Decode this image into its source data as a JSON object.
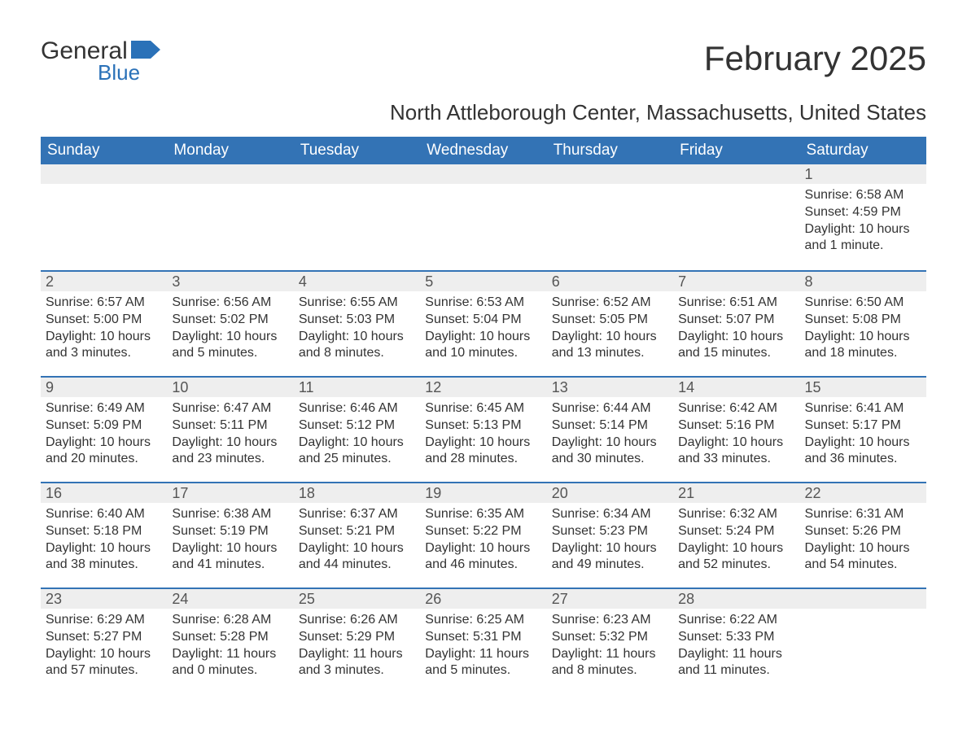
{
  "logo": {
    "word1": "General",
    "word2": "Blue"
  },
  "title": "February 2025",
  "subtitle": "North Attleborough Center, Massachusetts, United States",
  "colors": {
    "brand_blue": "#3373b5",
    "logo_blue": "#2a71b8",
    "text_dark": "#333333",
    "day_bar_bg": "#eeeeee",
    "white": "#ffffff"
  },
  "typography": {
    "title_fontsize": 42,
    "subtitle_fontsize": 26,
    "dow_fontsize": 19,
    "daynum_fontsize": 18,
    "body_fontsize": 16
  },
  "days_of_week": [
    "Sunday",
    "Monday",
    "Tuesday",
    "Wednesday",
    "Thursday",
    "Friday",
    "Saturday"
  ],
  "labels": {
    "sunrise": "Sunrise:",
    "sunset": "Sunset:",
    "daylight": "Daylight:"
  },
  "weeks": [
    [
      {
        "num": "",
        "sunrise": "",
        "sunset": "",
        "daylight_l1": "",
        "daylight_l2": ""
      },
      {
        "num": "",
        "sunrise": "",
        "sunset": "",
        "daylight_l1": "",
        "daylight_l2": ""
      },
      {
        "num": "",
        "sunrise": "",
        "sunset": "",
        "daylight_l1": "",
        "daylight_l2": ""
      },
      {
        "num": "",
        "sunrise": "",
        "sunset": "",
        "daylight_l1": "",
        "daylight_l2": ""
      },
      {
        "num": "",
        "sunrise": "",
        "sunset": "",
        "daylight_l1": "",
        "daylight_l2": ""
      },
      {
        "num": "",
        "sunrise": "",
        "sunset": "",
        "daylight_l1": "",
        "daylight_l2": ""
      },
      {
        "num": "1",
        "sunrise": "Sunrise: 6:58 AM",
        "sunset": "Sunset: 4:59 PM",
        "daylight_l1": "Daylight: 10 hours",
        "daylight_l2": "and 1 minute."
      }
    ],
    [
      {
        "num": "2",
        "sunrise": "Sunrise: 6:57 AM",
        "sunset": "Sunset: 5:00 PM",
        "daylight_l1": "Daylight: 10 hours",
        "daylight_l2": "and 3 minutes."
      },
      {
        "num": "3",
        "sunrise": "Sunrise: 6:56 AM",
        "sunset": "Sunset: 5:02 PM",
        "daylight_l1": "Daylight: 10 hours",
        "daylight_l2": "and 5 minutes."
      },
      {
        "num": "4",
        "sunrise": "Sunrise: 6:55 AM",
        "sunset": "Sunset: 5:03 PM",
        "daylight_l1": "Daylight: 10 hours",
        "daylight_l2": "and 8 minutes."
      },
      {
        "num": "5",
        "sunrise": "Sunrise: 6:53 AM",
        "sunset": "Sunset: 5:04 PM",
        "daylight_l1": "Daylight: 10 hours",
        "daylight_l2": "and 10 minutes."
      },
      {
        "num": "6",
        "sunrise": "Sunrise: 6:52 AM",
        "sunset": "Sunset: 5:05 PM",
        "daylight_l1": "Daylight: 10 hours",
        "daylight_l2": "and 13 minutes."
      },
      {
        "num": "7",
        "sunrise": "Sunrise: 6:51 AM",
        "sunset": "Sunset: 5:07 PM",
        "daylight_l1": "Daylight: 10 hours",
        "daylight_l2": "and 15 minutes."
      },
      {
        "num": "8",
        "sunrise": "Sunrise: 6:50 AM",
        "sunset": "Sunset: 5:08 PM",
        "daylight_l1": "Daylight: 10 hours",
        "daylight_l2": "and 18 minutes."
      }
    ],
    [
      {
        "num": "9",
        "sunrise": "Sunrise: 6:49 AM",
        "sunset": "Sunset: 5:09 PM",
        "daylight_l1": "Daylight: 10 hours",
        "daylight_l2": "and 20 minutes."
      },
      {
        "num": "10",
        "sunrise": "Sunrise: 6:47 AM",
        "sunset": "Sunset: 5:11 PM",
        "daylight_l1": "Daylight: 10 hours",
        "daylight_l2": "and 23 minutes."
      },
      {
        "num": "11",
        "sunrise": "Sunrise: 6:46 AM",
        "sunset": "Sunset: 5:12 PM",
        "daylight_l1": "Daylight: 10 hours",
        "daylight_l2": "and 25 minutes."
      },
      {
        "num": "12",
        "sunrise": "Sunrise: 6:45 AM",
        "sunset": "Sunset: 5:13 PM",
        "daylight_l1": "Daylight: 10 hours",
        "daylight_l2": "and 28 minutes."
      },
      {
        "num": "13",
        "sunrise": "Sunrise: 6:44 AM",
        "sunset": "Sunset: 5:14 PM",
        "daylight_l1": "Daylight: 10 hours",
        "daylight_l2": "and 30 minutes."
      },
      {
        "num": "14",
        "sunrise": "Sunrise: 6:42 AM",
        "sunset": "Sunset: 5:16 PM",
        "daylight_l1": "Daylight: 10 hours",
        "daylight_l2": "and 33 minutes."
      },
      {
        "num": "15",
        "sunrise": "Sunrise: 6:41 AM",
        "sunset": "Sunset: 5:17 PM",
        "daylight_l1": "Daylight: 10 hours",
        "daylight_l2": "and 36 minutes."
      }
    ],
    [
      {
        "num": "16",
        "sunrise": "Sunrise: 6:40 AM",
        "sunset": "Sunset: 5:18 PM",
        "daylight_l1": "Daylight: 10 hours",
        "daylight_l2": "and 38 minutes."
      },
      {
        "num": "17",
        "sunrise": "Sunrise: 6:38 AM",
        "sunset": "Sunset: 5:19 PM",
        "daylight_l1": "Daylight: 10 hours",
        "daylight_l2": "and 41 minutes."
      },
      {
        "num": "18",
        "sunrise": "Sunrise: 6:37 AM",
        "sunset": "Sunset: 5:21 PM",
        "daylight_l1": "Daylight: 10 hours",
        "daylight_l2": "and 44 minutes."
      },
      {
        "num": "19",
        "sunrise": "Sunrise: 6:35 AM",
        "sunset": "Sunset: 5:22 PM",
        "daylight_l1": "Daylight: 10 hours",
        "daylight_l2": "and 46 minutes."
      },
      {
        "num": "20",
        "sunrise": "Sunrise: 6:34 AM",
        "sunset": "Sunset: 5:23 PM",
        "daylight_l1": "Daylight: 10 hours",
        "daylight_l2": "and 49 minutes."
      },
      {
        "num": "21",
        "sunrise": "Sunrise: 6:32 AM",
        "sunset": "Sunset: 5:24 PM",
        "daylight_l1": "Daylight: 10 hours",
        "daylight_l2": "and 52 minutes."
      },
      {
        "num": "22",
        "sunrise": "Sunrise: 6:31 AM",
        "sunset": "Sunset: 5:26 PM",
        "daylight_l1": "Daylight: 10 hours",
        "daylight_l2": "and 54 minutes."
      }
    ],
    [
      {
        "num": "23",
        "sunrise": "Sunrise: 6:29 AM",
        "sunset": "Sunset: 5:27 PM",
        "daylight_l1": "Daylight: 10 hours",
        "daylight_l2": "and 57 minutes."
      },
      {
        "num": "24",
        "sunrise": "Sunrise: 6:28 AM",
        "sunset": "Sunset: 5:28 PM",
        "daylight_l1": "Daylight: 11 hours",
        "daylight_l2": "and 0 minutes."
      },
      {
        "num": "25",
        "sunrise": "Sunrise: 6:26 AM",
        "sunset": "Sunset: 5:29 PM",
        "daylight_l1": "Daylight: 11 hours",
        "daylight_l2": "and 3 minutes."
      },
      {
        "num": "26",
        "sunrise": "Sunrise: 6:25 AM",
        "sunset": "Sunset: 5:31 PM",
        "daylight_l1": "Daylight: 11 hours",
        "daylight_l2": "and 5 minutes."
      },
      {
        "num": "27",
        "sunrise": "Sunrise: 6:23 AM",
        "sunset": "Sunset: 5:32 PM",
        "daylight_l1": "Daylight: 11 hours",
        "daylight_l2": "and 8 minutes."
      },
      {
        "num": "28",
        "sunrise": "Sunrise: 6:22 AM",
        "sunset": "Sunset: 5:33 PM",
        "daylight_l1": "Daylight: 11 hours",
        "daylight_l2": "and 11 minutes."
      },
      {
        "num": "",
        "sunrise": "",
        "sunset": "",
        "daylight_l1": "",
        "daylight_l2": ""
      }
    ]
  ]
}
